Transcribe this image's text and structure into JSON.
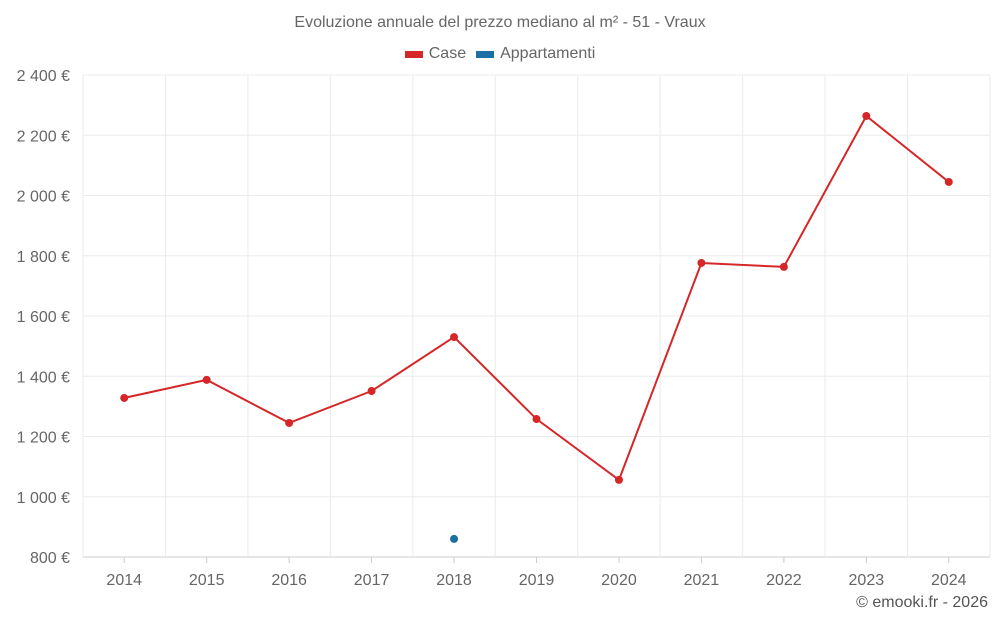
{
  "chart_data": {
    "type": "line",
    "title": "Evoluzione annuale del prezzo mediano al m² - 51 - Vraux",
    "xlabel": "",
    "ylabel": "",
    "categories": [
      "2014",
      "2015",
      "2016",
      "2017",
      "2018",
      "2019",
      "2020",
      "2021",
      "2022",
      "2023",
      "2024"
    ],
    "yticks": [
      "800 €",
      "1 000 €",
      "1 200 €",
      "1 400 €",
      "1 600 €",
      "1 800 €",
      "2 000 €",
      "2 200 €",
      "2 400 €"
    ],
    "ylim": [
      800,
      2400
    ],
    "grid": true,
    "legend_position": "top-center",
    "series": [
      {
        "name": "Case",
        "color": "#d62728",
        "values": [
          1328,
          1388,
          1245,
          1351,
          1530,
          1258,
          1056,
          1776,
          1763,
          2264,
          2045
        ]
      },
      {
        "name": "Appartamenti",
        "color": "#1a6fa3",
        "values": [
          null,
          null,
          null,
          null,
          860,
          null,
          null,
          null,
          null,
          null,
          null
        ]
      }
    ]
  },
  "credit": "© emooki.fr - 2026"
}
